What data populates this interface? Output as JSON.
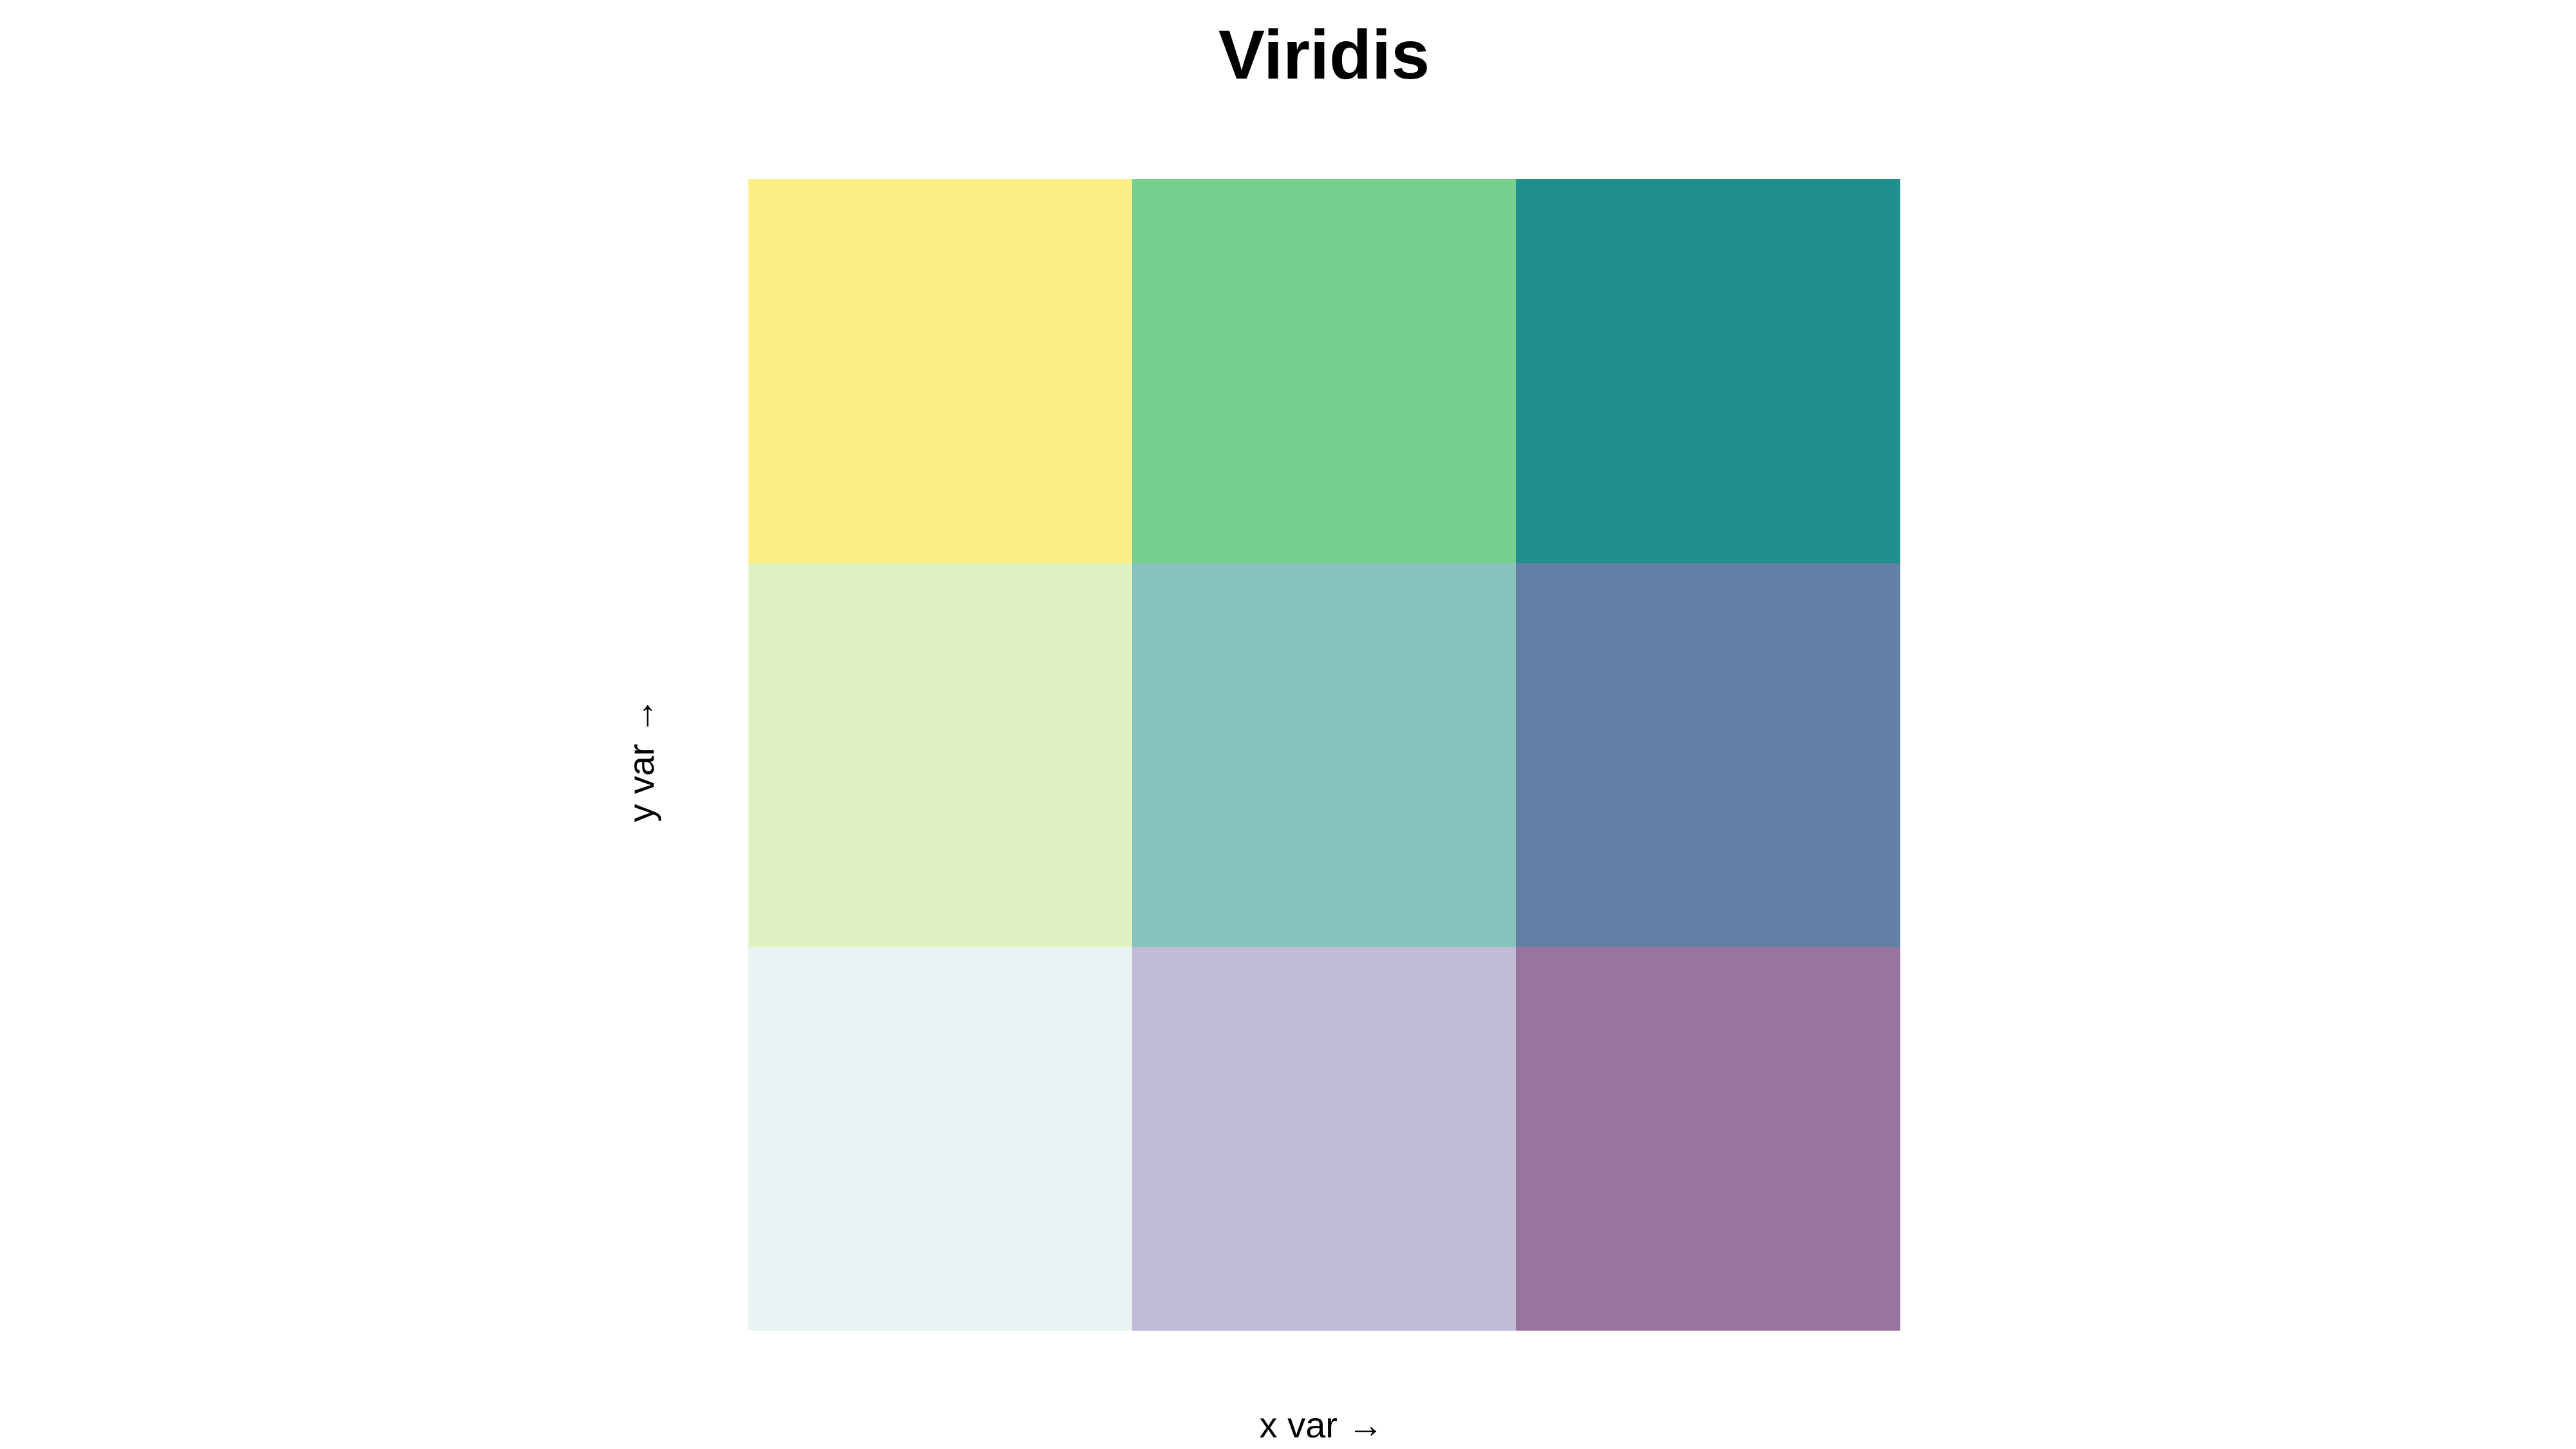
{
  "chart_data": {
    "type": "heatmap",
    "title": "Viridis",
    "xlabel": "x var →",
    "ylabel": "y var →",
    "columns": 3,
    "rows": 3,
    "cells": [
      {
        "x": 1,
        "y": 1,
        "color": "#e8f4f3"
      },
      {
        "x": 2,
        "y": 1,
        "color": "#c0bcd6"
      },
      {
        "x": 3,
        "y": 1,
        "color": "#98759f"
      },
      {
        "x": 1,
        "y": 2,
        "color": "#dff2c2"
      },
      {
        "x": 2,
        "y": 2,
        "color": "#88c2be"
      },
      {
        "x": 3,
        "y": 2,
        "color": "#6381a7"
      },
      {
        "x": 1,
        "y": 3,
        "color": "#fdef88"
      },
      {
        "x": 2,
        "y": 3,
        "color": "#75cf8d"
      },
      {
        "x": 3,
        "y": 3,
        "color": "#21908d"
      }
    ],
    "grid": false,
    "legend": "none"
  }
}
